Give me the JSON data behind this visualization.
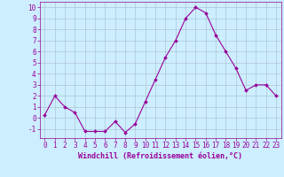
{
  "x": [
    0,
    1,
    2,
    3,
    4,
    5,
    6,
    7,
    8,
    9,
    10,
    11,
    12,
    13,
    14,
    15,
    16,
    17,
    18,
    19,
    20,
    21,
    22,
    23
  ],
  "y": [
    0.3,
    2.0,
    1.0,
    0.5,
    -1.2,
    -1.2,
    -1.2,
    -0.3,
    -1.3,
    -0.5,
    1.5,
    3.5,
    5.5,
    7.0,
    9.0,
    10.0,
    9.5,
    7.5,
    6.0,
    4.5,
    2.5,
    3.0,
    3.0,
    2.0
  ],
  "line_color": "#990099",
  "marker": "D",
  "marker_size": 2.0,
  "bg_color": "#cceeff",
  "grid_color": "#aabbcc",
  "xlabel": "Windchill (Refroidissement éolien,°C)",
  "xlabel_color": "#990099",
  "yticks": [
    -1,
    0,
    1,
    2,
    3,
    4,
    5,
    6,
    7,
    8,
    9,
    10
  ],
  "xlim": [
    -0.5,
    23.5
  ],
  "ylim": [
    -1.8,
    10.5
  ],
  "tick_color": "#990099",
  "axis_color": "#990099",
  "tick_fontsize": 5.5,
  "xlabel_fontsize": 6.0,
  "linewidth": 0.8
}
